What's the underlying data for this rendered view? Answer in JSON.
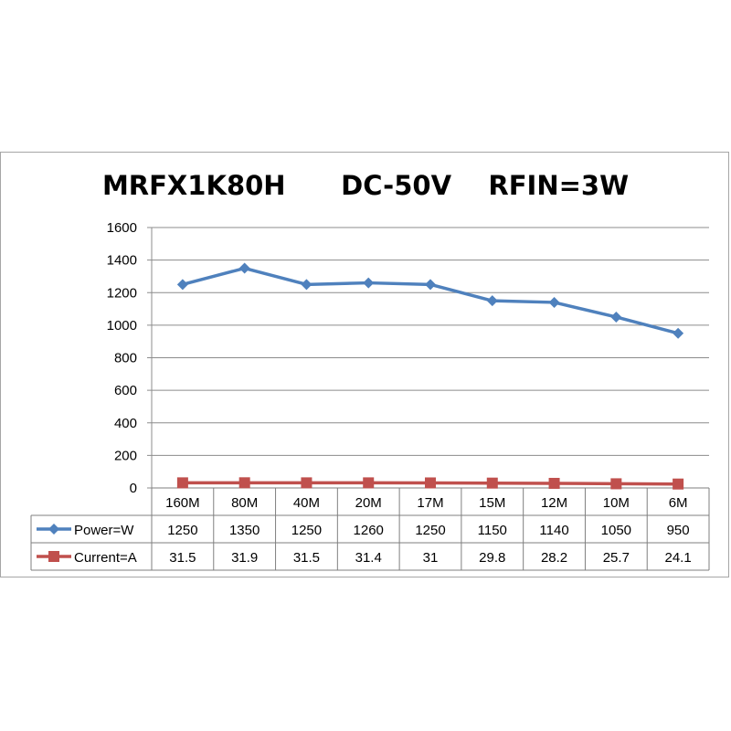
{
  "chart_data": {
    "type": "line",
    "title": "MRFX1K80H      DC-50V    RFIN=3W",
    "categories": [
      "160M",
      "80M",
      "40M",
      "20M",
      "17M",
      "15M",
      "12M",
      "10M",
      "6M"
    ],
    "series": [
      {
        "name": "Power=W",
        "values": [
          1250,
          1350,
          1250,
          1260,
          1250,
          1150,
          1140,
          1050,
          950
        ],
        "color": "#4f81bd",
        "marker": "diamond"
      },
      {
        "name": "Current=A",
        "values": [
          31.5,
          31.9,
          31.5,
          31.4,
          31,
          29.8,
          28.2,
          25.7,
          24.1
        ],
        "color": "#c0504d",
        "marker": "square"
      }
    ],
    "ylim": [
      0,
      1600
    ],
    "yticks": [
      0,
      200,
      400,
      600,
      800,
      1000,
      1200,
      1400,
      1600
    ],
    "grid": true,
    "legend": "data-table",
    "data_table": true
  }
}
